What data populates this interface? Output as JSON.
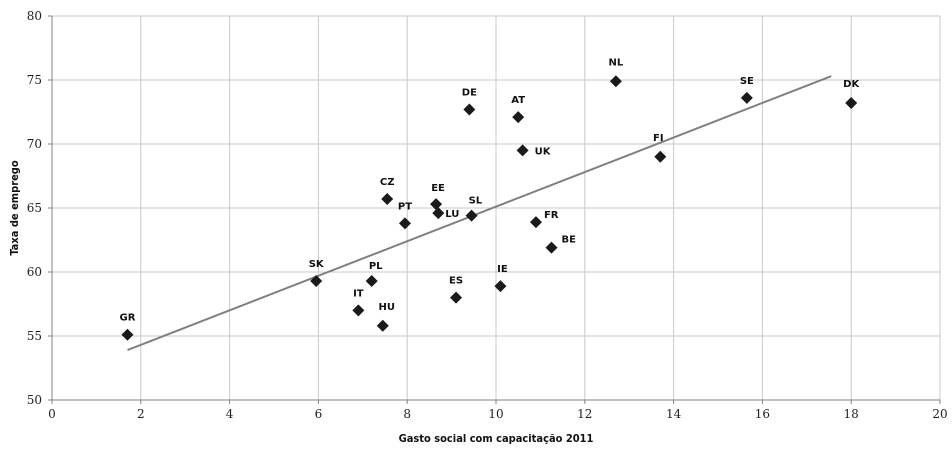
{
  "chart_data": {
    "type": "scatter",
    "title": "",
    "xlabel": "Gasto social com capacitação 2011",
    "ylabel": "Taxa de emprego",
    "xlim": [
      0,
      20
    ],
    "ylim": [
      50,
      80
    ],
    "x_ticks": [
      0,
      2,
      4,
      6,
      8,
      10,
      12,
      14,
      16,
      18,
      20
    ],
    "y_ticks": [
      50,
      55,
      60,
      65,
      70,
      75,
      80
    ],
    "grid": true,
    "legend": "none",
    "colors": {
      "marker": "#1a1a1a",
      "trendline": "#808080",
      "grid": "#c8c8c8",
      "axis": "#808080"
    },
    "points": [
      {
        "label": "GR",
        "x": 1.7,
        "y": 55.1
      },
      {
        "label": "SK",
        "x": 5.95,
        "y": 59.3
      },
      {
        "label": "IT",
        "x": 6.9,
        "y": 57.0
      },
      {
        "label": "PL",
        "x": 7.2,
        "y": 59.3
      },
      {
        "label": "HU",
        "x": 7.45,
        "y": 55.8
      },
      {
        "label": "CZ",
        "x": 7.55,
        "y": 65.7
      },
      {
        "label": "PT",
        "x": 7.95,
        "y": 63.8
      },
      {
        "label": "EE",
        "x": 8.65,
        "y": 65.3
      },
      {
        "label": "LU",
        "x": 8.7,
        "y": 64.6
      },
      {
        "label": "ES",
        "x": 9.1,
        "y": 58.0
      },
      {
        "label": "DE",
        "x": 9.4,
        "y": 72.7
      },
      {
        "label": "SL",
        "x": 9.45,
        "y": 64.4
      },
      {
        "label": "IE",
        "x": 10.1,
        "y": 58.9
      },
      {
        "label": "AT",
        "x": 10.5,
        "y": 72.1
      },
      {
        "label": "UK",
        "x": 10.6,
        "y": 69.5
      },
      {
        "label": "FR",
        "x": 10.9,
        "y": 63.9
      },
      {
        "label": "BE",
        "x": 11.25,
        "y": 61.9
      },
      {
        "label": "NL",
        "x": 12.7,
        "y": 74.9
      },
      {
        "label": "FI",
        "x": 13.7,
        "y": 69.0
      },
      {
        "label": "SE",
        "x": 15.65,
        "y": 73.6
      },
      {
        "label": "DK",
        "x": 18.0,
        "y": 73.2
      }
    ],
    "trendline": {
      "x": [
        1.7,
        17.55
      ],
      "y": [
        53.9,
        75.3
      ]
    }
  }
}
